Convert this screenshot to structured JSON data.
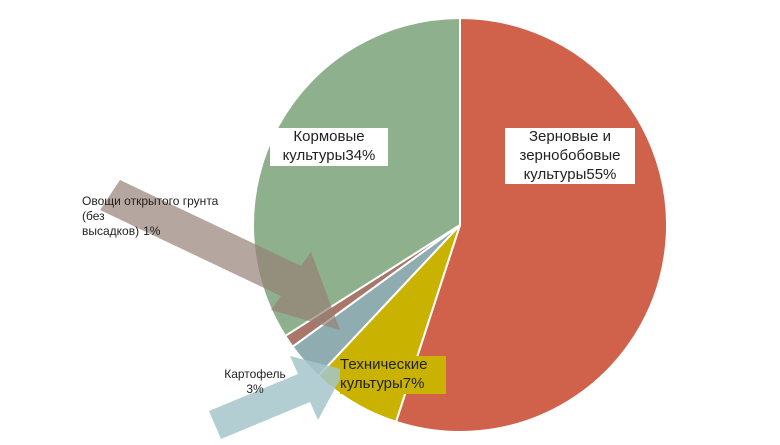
{
  "chart_data": {
    "type": "pie",
    "categories": [
      "Зерновые и\nзернобобовые\nкультуры",
      "Технические\nкультуры",
      "Картофель",
      "Овощи открытого грунта\n(без\nвысадков)",
      "Кормовые\nкультуры"
    ],
    "values": [
      55,
      7,
      3,
      1,
      34
    ],
    "value_labels": [
      "55%",
      "7%",
      "3%",
      "1%",
      "34%"
    ],
    "colors": [
      "#d0624b",
      "#c9b300",
      "#8fadb1",
      "#a8776a",
      "#8fb08c"
    ]
  }
}
